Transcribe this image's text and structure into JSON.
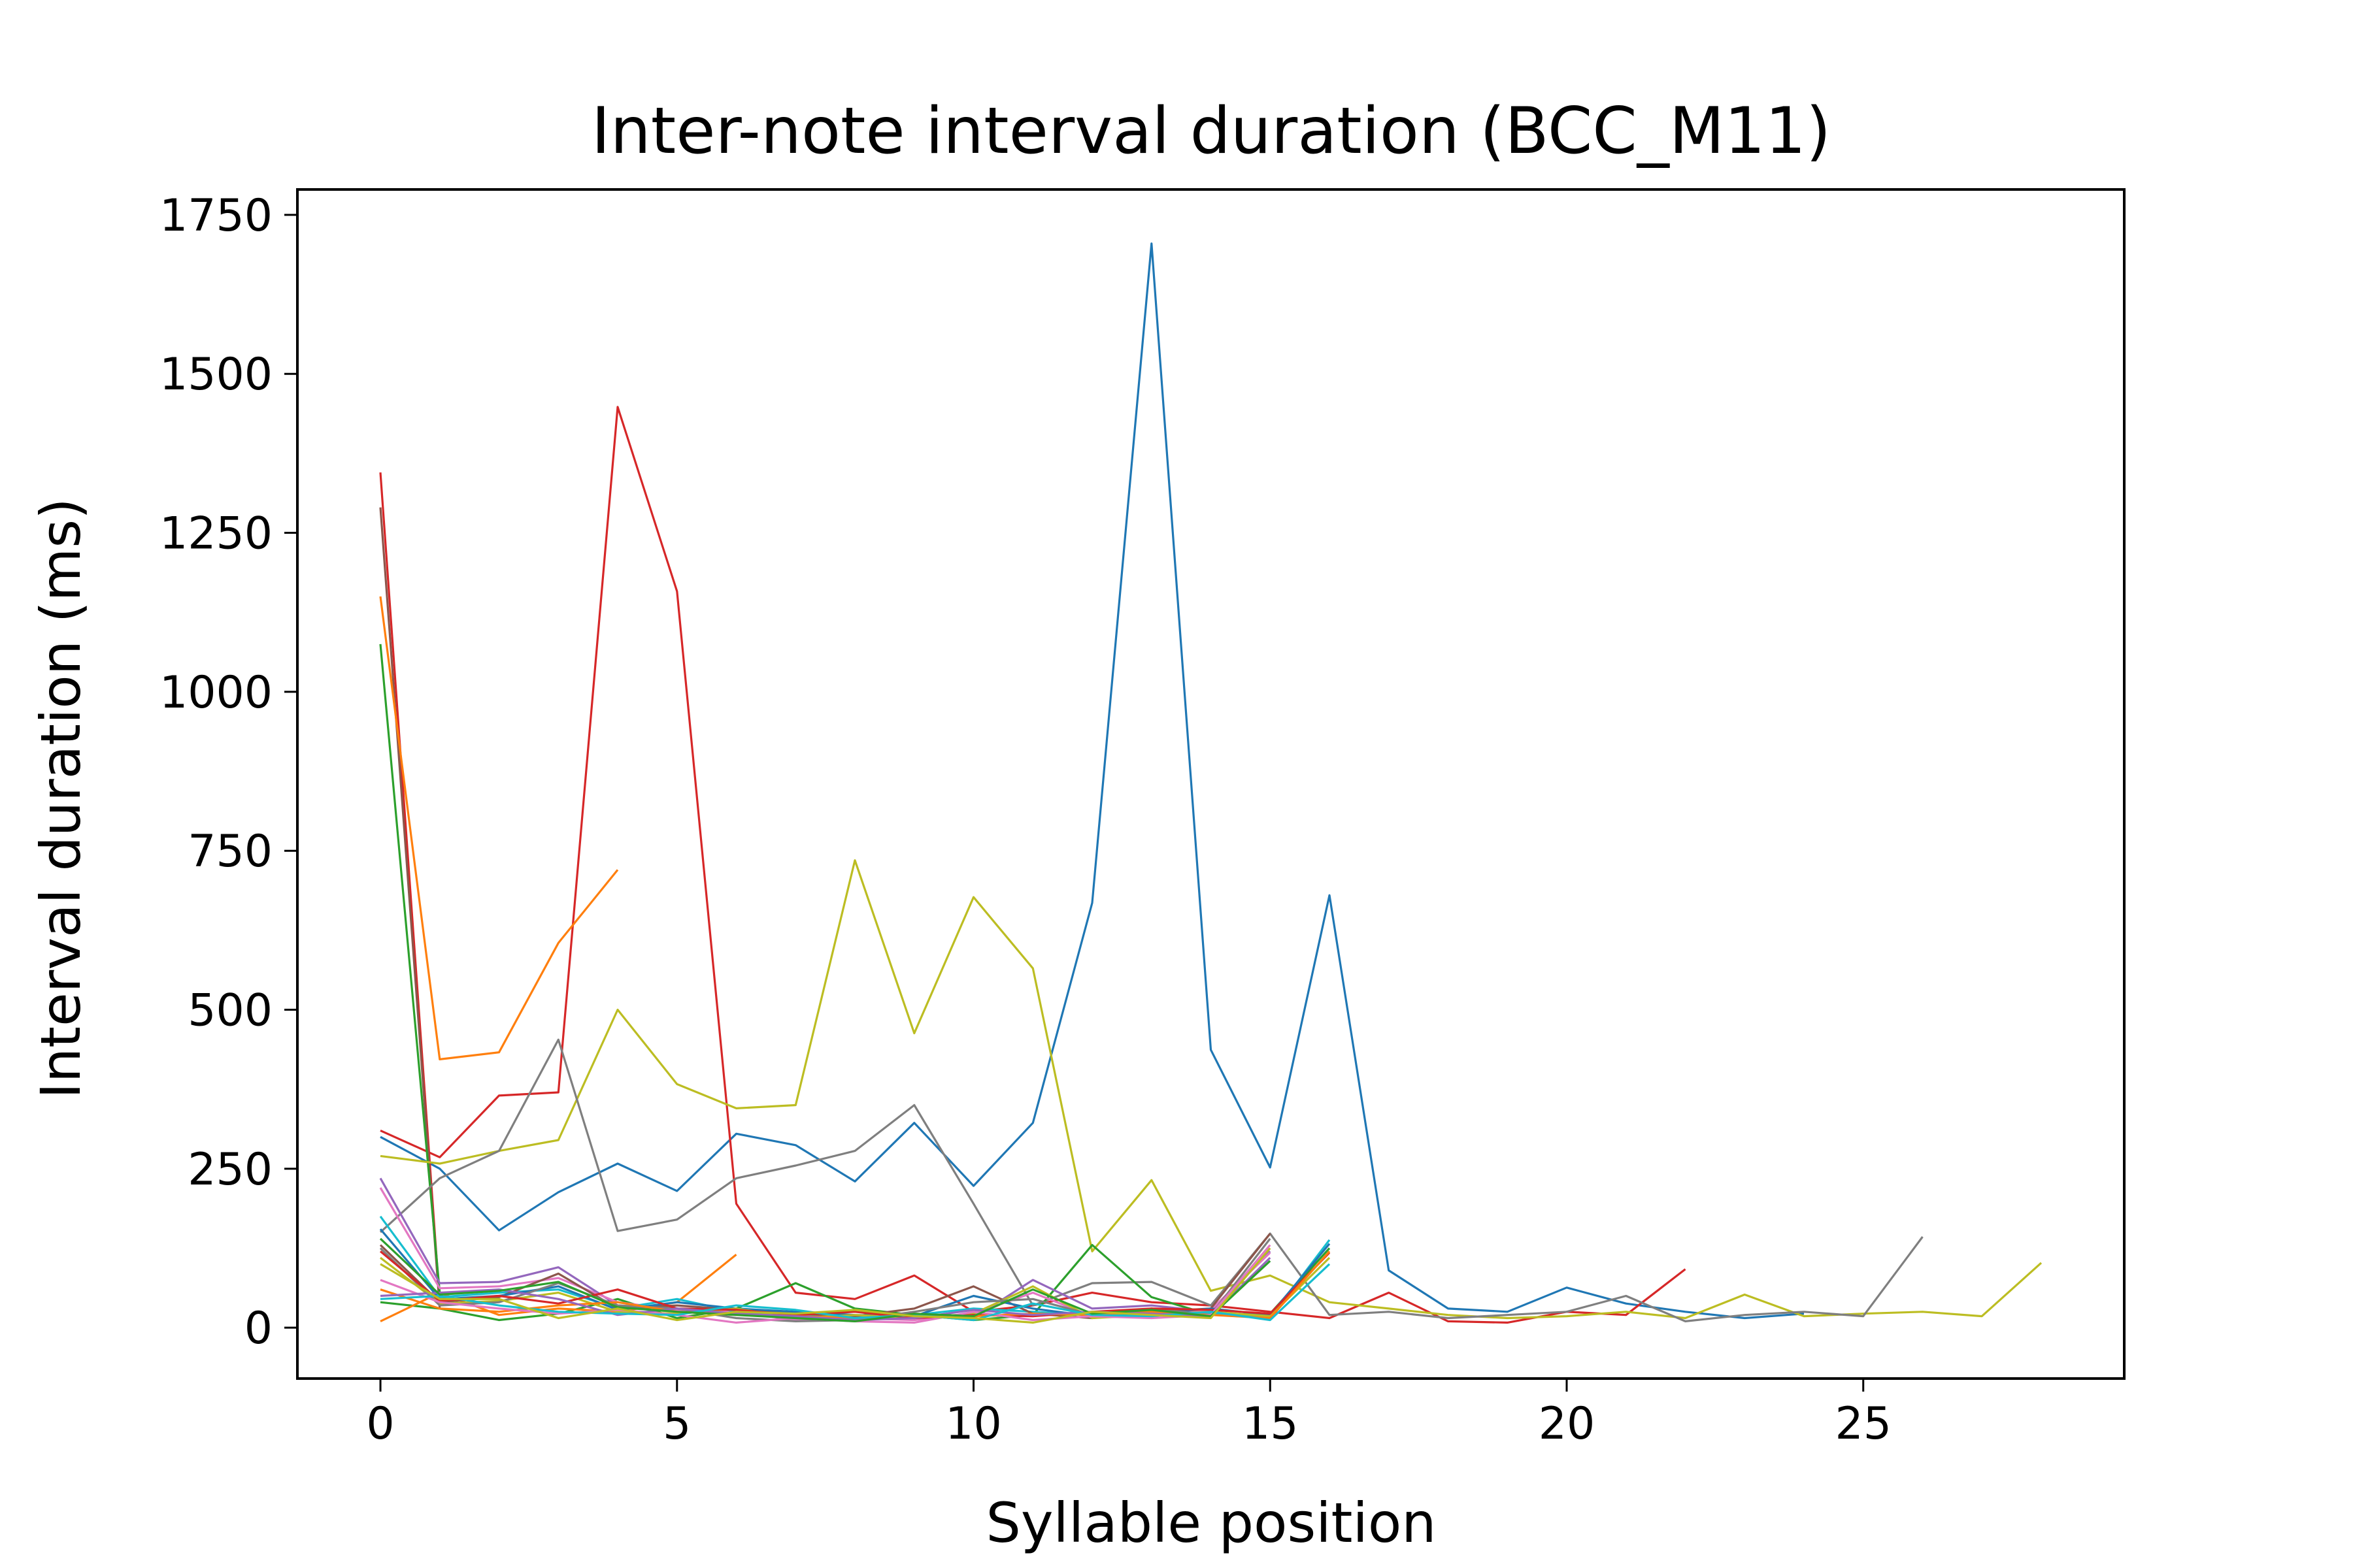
{
  "chart_data": {
    "type": "line",
    "title": "Inter-note interval duration (BCC_M11)",
    "xlabel": "Syllable position",
    "ylabel": "Interval duration (ms)",
    "xlim": [
      -1.4,
      29.4
    ],
    "ylim": [
      -80,
      1790
    ],
    "xticks": [
      0,
      5,
      10,
      15,
      20,
      25
    ],
    "yticks": [
      0,
      250,
      500,
      750,
      1000,
      1250,
      1500,
      1750
    ],
    "grid": false,
    "legend": "none",
    "series": [
      {
        "color": "#1f77b4",
        "x": [
          0,
          1,
          2,
          3,
          4,
          5,
          6,
          7,
          8,
          9,
          10,
          11,
          12,
          13,
          14,
          15,
          16,
          17,
          18,
          19,
          20,
          21,
          22,
          23,
          24
        ],
        "values": [
          300,
          250,
          153,
          213,
          258,
          215,
          305,
          287,
          230,
          322,
          223,
          322,
          668,
          1705,
          437,
          252,
          680,
          90,
          30,
          25,
          63,
          38,
          25,
          15,
          22
        ]
      },
      {
        "color": "#d62728",
        "x": [
          0,
          1,
          2,
          3,
          4,
          5,
          6,
          7,
          8,
          9,
          10,
          11,
          12,
          13,
          14,
          15,
          16,
          17,
          18,
          19,
          20,
          21,
          22
        ],
        "values": [
          310,
          268,
          365,
          370,
          1448,
          1158,
          195,
          55,
          45,
          82,
          25,
          35,
          55,
          40,
          35,
          25,
          15,
          55,
          10,
          8,
          25,
          20,
          92
        ]
      },
      {
        "color": "#d62728",
        "x": [
          0,
          1
        ],
        "values": [
          1345,
          40
        ]
      },
      {
        "color": "#8c564b",
        "x": [
          0,
          1
        ],
        "values": [
          1290,
          30
        ]
      },
      {
        "color": "#ff7f0e",
        "x": [
          0,
          1,
          2,
          3,
          4
        ],
        "values": [
          1150,
          422,
          433,
          605,
          720
        ]
      },
      {
        "color": "#2ca02c",
        "x": [
          0,
          1
        ],
        "values": [
          1075,
          55
        ]
      },
      {
        "color": "#bcbd22",
        "x": [
          0,
          1,
          2,
          3,
          4,
          5,
          6,
          7,
          8,
          9,
          10,
          11,
          12,
          13,
          14,
          15,
          16,
          17,
          18,
          19,
          20,
          21,
          22,
          23,
          24,
          25,
          26,
          27,
          28
        ],
        "values": [
          270,
          258,
          278,
          295,
          500,
          383,
          345,
          350,
          735,
          463,
          677,
          565,
          120,
          232,
          58,
          82,
          40,
          30,
          20,
          15,
          18,
          25,
          15,
          52,
          18,
          22,
          25,
          18,
          102
        ]
      },
      {
        "color": "#7f7f7f",
        "x": [
          0,
          1,
          2,
          3,
          4,
          5,
          6,
          7,
          8,
          9,
          10,
          11,
          12,
          13,
          14,
          15,
          16,
          17,
          18,
          19,
          20,
          21,
          22,
          23,
          24,
          25,
          26
        ],
        "values": [
          150,
          235,
          278,
          453,
          152,
          170,
          235,
          255,
          278,
          350,
          195,
          35,
          70,
          72,
          35,
          148,
          20,
          25,
          15,
          20,
          25,
          50,
          10,
          20,
          25,
          18,
          143
        ]
      },
      {
        "color": "#2ca02c",
        "x": [
          0,
          1,
          2,
          3,
          4,
          5,
          6,
          7,
          8,
          9,
          10,
          11,
          12,
          13,
          14,
          15,
          16
        ],
        "values": [
          40,
          30,
          12,
          22,
          45,
          15,
          30,
          70,
          30,
          20,
          12,
          20,
          130,
          48,
          20,
          22,
          125
        ]
      },
      {
        "color": "#ff7f0e",
        "x": [
          0,
          1,
          2,
          3,
          4,
          5,
          6
        ],
        "values": [
          10,
          55,
          20,
          30,
          25,
          40,
          115
        ]
      },
      {
        "color": "#9467bd",
        "x": [
          0,
          1,
          2,
          3,
          4,
          5,
          6,
          7,
          8,
          9,
          10,
          11,
          12,
          13,
          14,
          15
        ],
        "values": [
          235,
          70,
          72,
          95,
          35,
          30,
          22,
          18,
          12,
          20,
          15,
          75,
          30,
          35,
          25,
          120
        ]
      },
      {
        "color": "#e377c2",
        "x": [
          0,
          1,
          2,
          3,
          4,
          5,
          6,
          7,
          8,
          9,
          10,
          11,
          12,
          13,
          14,
          15
        ],
        "values": [
          220,
          62,
          65,
          78,
          40,
          28,
          25,
          12,
          15,
          12,
          22,
          55,
          18,
          20,
          28,
          118
        ]
      },
      {
        "color": "#17becf",
        "x": [
          0,
          1,
          2,
          3,
          4,
          5,
          6,
          7,
          8,
          9,
          10,
          11,
          12,
          13,
          14,
          15,
          16
        ],
        "values": [
          175,
          48,
          55,
          60,
          30,
          45,
          25,
          20,
          18,
          20,
          30,
          25,
          20,
          25,
          22,
          15,
          138
        ]
      },
      {
        "color": "#8c564b",
        "x": [
          0,
          1,
          2,
          3,
          4,
          5,
          6,
          7,
          8,
          9,
          10,
          11,
          12,
          13,
          14,
          15
        ],
        "values": [
          130,
          40,
          48,
          85,
          30,
          35,
          28,
          22,
          18,
          30,
          65,
          22,
          15,
          25,
          30,
          148
        ]
      },
      {
        "color": "#1f77b4",
        "x": [
          0,
          1,
          2,
          3,
          4,
          5,
          6,
          7,
          8,
          9,
          10,
          11,
          12,
          13,
          14,
          15,
          16
        ],
        "values": [
          155,
          45,
          50,
          65,
          28,
          40,
          30,
          25,
          20,
          18,
          50,
          30,
          18,
          22,
          30,
          20,
          132
        ]
      },
      {
        "color": "#bcbd22",
        "x": [
          0,
          1,
          2,
          3,
          4,
          5,
          6,
          7,
          8,
          9,
          10,
          11,
          12,
          13,
          14,
          15,
          16
        ],
        "values": [
          110,
          38,
          42,
          55,
          25,
          22,
          30,
          15,
          20,
          15,
          22,
          65,
          15,
          20,
          25,
          18,
          110
        ]
      },
      {
        "color": "#7f7f7f",
        "x": [
          0,
          1,
          2,
          3,
          4,
          5,
          6,
          7,
          8,
          9,
          10,
          11,
          12,
          13,
          14,
          15
        ],
        "values": [
          125,
          35,
          40,
          70,
          35,
          30,
          15,
          10,
          12,
          25,
          40,
          45,
          20,
          30,
          20,
          140
        ]
      },
      {
        "color": "#d62728",
        "x": [
          0,
          1,
          2,
          3,
          4,
          5,
          6,
          7,
          8,
          9,
          10,
          11,
          12,
          13,
          14,
          15,
          16
        ],
        "values": [
          120,
          42,
          50,
          38,
          60,
          30,
          28,
          20,
          25,
          15,
          20,
          18,
          25,
          30,
          28,
          22,
          118
        ]
      },
      {
        "color": "#ff7f0e",
        "x": [
          0,
          1,
          2,
          3,
          4,
          5,
          6,
          7,
          8,
          9,
          10,
          11,
          12,
          13,
          14,
          15,
          16
        ],
        "values": [
          60,
          30,
          25,
          35,
          40,
          25,
          20,
          18,
          15,
          20,
          18,
          22,
          20,
          25,
          20,
          15,
          120
        ]
      },
      {
        "color": "#e377c2",
        "x": [
          0,
          1,
          2,
          3,
          4,
          5,
          6,
          7,
          8,
          9,
          10,
          11,
          12,
          13,
          14,
          15
        ],
        "values": [
          75,
          40,
          30,
          22,
          28,
          20,
          8,
          15,
          10,
          8,
          25,
          12,
          18,
          15,
          20,
          130
        ]
      },
      {
        "color": "#9467bd",
        "x": [
          0,
          1,
          2,
          3,
          4,
          5,
          6,
          7,
          8,
          9,
          10,
          11,
          12,
          13,
          14,
          15
        ],
        "values": [
          50,
          55,
          60,
          45,
          20,
          30,
          22,
          18,
          12,
          15,
          28,
          20,
          25,
          22,
          18,
          110
        ]
      },
      {
        "color": "#17becf",
        "x": [
          0,
          1,
          2,
          3,
          4,
          5,
          6,
          7,
          8,
          9,
          10,
          11,
          12,
          13,
          14,
          15,
          16
        ],
        "values": [
          45,
          50,
          35,
          25,
          22,
          20,
          35,
          28,
          15,
          20,
          12,
          38,
          20,
          18,
          25,
          12,
          100
        ]
      },
      {
        "color": "#2ca02c",
        "x": [
          0,
          1,
          2,
          3,
          4,
          5,
          6,
          7,
          8,
          9,
          10,
          11,
          12,
          13,
          14,
          15
        ],
        "values": [
          140,
          52,
          58,
          72,
          32,
          25,
          20,
          15,
          10,
          22,
          18,
          60,
          22,
          28,
          18,
          105
        ]
      },
      {
        "color": "#bcbd22",
        "x": [
          0,
          1,
          2,
          3,
          4,
          5,
          6,
          7,
          8,
          9,
          10,
          11,
          12,
          13,
          14,
          15
        ],
        "values": [
          100,
          45,
          45,
          15,
          30,
          12,
          25,
          22,
          28,
          18,
          15,
          8,
          25,
          20,
          15,
          125
        ]
      }
    ]
  }
}
